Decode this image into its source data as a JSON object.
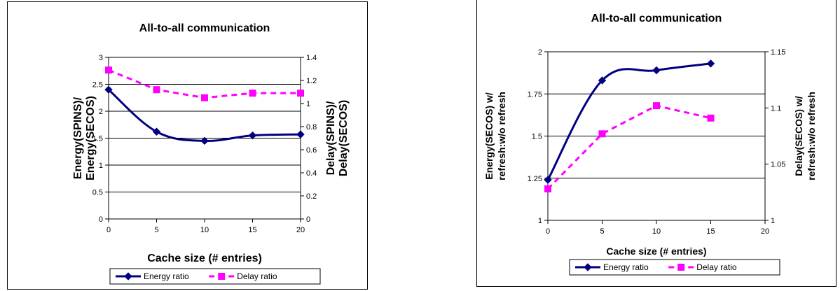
{
  "chart_data": [
    {
      "type": "line",
      "title": "All-to-all communication",
      "xlabel": "Cache size (# entries)",
      "ylabel": "Energy(SPINS)/ Energy(SECOS)",
      "ylabel_lines": [
        "Energy(SPINS)/",
        "Energy(SECOS)"
      ],
      "y2label": "Delay(SPINS)/ Delay(SECOS)",
      "y2label_lines": [
        "Delay(SPINS)/",
        "Delay(SECOS)"
      ],
      "xlim": [
        0,
        20
      ],
      "xticks": [
        "0",
        "5",
        "10",
        "15",
        "20"
      ],
      "ylim": [
        0,
        3
      ],
      "yticks": [
        "0",
        "0.5",
        "1",
        "1.5",
        "2",
        "2.5",
        "3"
      ],
      "y2lim": [
        0,
        1.4
      ],
      "y2ticks": [
        "0",
        "0.2",
        "0.4",
        "0.6",
        "0.8",
        "1",
        "1.2",
        "1.4"
      ],
      "grid": "horizontal",
      "legend": "bottom",
      "series": [
        {
          "name": "Energy ratio",
          "axis": "left",
          "color": "#000080",
          "style": "solid",
          "marker": "diamond",
          "x": [
            0,
            5,
            10,
            15,
            20
          ],
          "values": [
            2.4,
            1.62,
            1.45,
            1.55,
            1.57
          ]
        },
        {
          "name": "Delay ratio",
          "axis": "right",
          "color": "#ff00ff",
          "style": "dashed",
          "marker": "square",
          "x": [
            0,
            5,
            10,
            15,
            20
          ],
          "values": [
            1.29,
            1.12,
            1.05,
            1.09,
            1.09
          ]
        }
      ]
    },
    {
      "type": "line",
      "title": "All-to-all communication",
      "xlabel": "Cache size (# entries)",
      "ylabel": "Energy(SECOS) w/ refresh:w/o refresh",
      "ylabel_lines": [
        "Energy(SECOS) w/",
        "refresh:w/o refresh"
      ],
      "y2label": "Delay(SECOS) w/ refresh:w/o refresh",
      "y2label_lines": [
        "Delay(SECOS) w/",
        "refresh:w/o refresh"
      ],
      "xlim": [
        0,
        20
      ],
      "xticks": [
        "0",
        "5",
        "10",
        "15",
        "20"
      ],
      "ylim": [
        1,
        2
      ],
      "yticks": [
        "1",
        "1.25",
        "1.5",
        "1.75",
        "2"
      ],
      "y2lim": [
        1,
        1.15
      ],
      "y2ticks": [
        "1",
        "1.05",
        "1.1",
        "1.15"
      ],
      "grid": "horizontal",
      "legend": "bottom",
      "series": [
        {
          "name": "Energy ratio",
          "axis": "left",
          "color": "#000080",
          "style": "solid",
          "marker": "diamond",
          "x": [
            0,
            5,
            10,
            15
          ],
          "values": [
            1.24,
            1.83,
            1.89,
            1.93
          ]
        },
        {
          "name": "Delay ratio",
          "axis": "right",
          "color": "#ff00ff",
          "style": "dashed",
          "marker": "square",
          "x": [
            0,
            5,
            10,
            15
          ],
          "values": [
            1.028,
            1.077,
            1.102,
            1.091
          ]
        }
      ]
    }
  ]
}
